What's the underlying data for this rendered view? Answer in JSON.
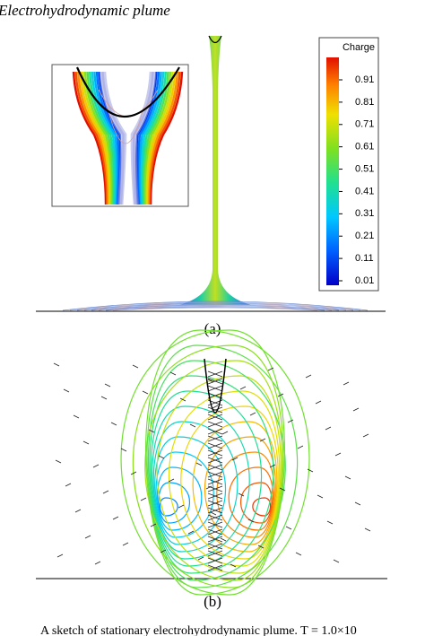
{
  "figure": {
    "title": "Electrohydrodynamic plume",
    "colorbar": {
      "title": "Charge",
      "ticks": [
        "0.91",
        "0.81",
        "0.71",
        "0.61",
        "0.51",
        "0.41",
        "0.31",
        "0.21",
        "0.11",
        "0.01"
      ]
    },
    "panels": [
      {
        "label": "(a)"
      },
      {
        "label": "(b)"
      }
    ],
    "caption": "A sketch of stationary electrohydrodynamic plume. T = 1.0×10"
  }
}
